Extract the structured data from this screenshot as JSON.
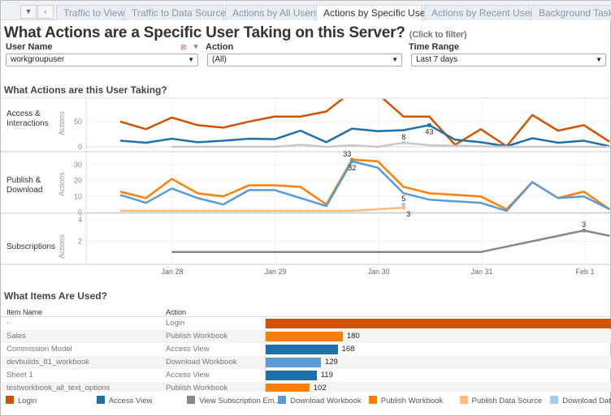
{
  "tabs": {
    "items": [
      "Traffic to Views",
      "Traffic to Data Sources",
      "Actions by All Users",
      "Actions by Specific User",
      "Actions by Recent Users",
      "Background Tasks"
    ],
    "active": 3
  },
  "title": "What Actions are a Specific User Taking on this Server?",
  "title_hint": "(Click to filter)",
  "filters": {
    "user": {
      "label": "User Name",
      "value": "workgroupuser"
    },
    "action": {
      "label": "Action",
      "value": "(All)"
    },
    "time": {
      "label": "Time Range",
      "value": "Last 7 days"
    }
  },
  "actions_section": "What Actions are this User Taking?",
  "items_section": "What Items Are Used?",
  "chart_data": [
    {
      "type": "line",
      "panels": [
        {
          "label": "Access & Interactions",
          "ylabel": "Actions",
          "ylim": [
            0,
            95
          ],
          "yticks": [
            0,
            50
          ]
        },
        {
          "label": "Publish & Download",
          "ylabel": "Actions",
          "ylim": [
            0,
            36
          ],
          "yticks": [
            0,
            10,
            20,
            30
          ]
        },
        {
          "label": "Subscriptions",
          "ylabel": "Actions",
          "ylim": [
            0,
            4.3
          ],
          "yticks": [
            2,
            4
          ]
        }
      ],
      "xticks": [
        "Jan 28",
        "Jan 29",
        "Jan 30",
        "Jan 31",
        "Feb 1"
      ],
      "x": [
        "Jan 27 12:00",
        "Jan 27 18:00",
        "Jan 28 00:00",
        "Jan 28 06:00",
        "Jan 28 12:00",
        "Jan 28 18:00",
        "Jan 29 00:00",
        "Jan 29 06:00",
        "Jan 29 12:00",
        "Jan 29 18:00",
        "Jan 30 00:00",
        "Jan 30 06:00",
        "Jan 30 12:00",
        "Jan 30 18:00",
        "Jan 31 00:00",
        "Jan 31 06:00",
        "Jan 31 12:00",
        "Jan 31 18:00",
        "Feb 1 00:00",
        "Feb 1 06:00"
      ],
      "series": [
        {
          "name": "Login",
          "panel": 0,
          "color": "#cf5300",
          "values": [
            50,
            35,
            58,
            43,
            38,
            50,
            60,
            60,
            70,
            110,
            105,
            60,
            60,
            4,
            35,
            1,
            63,
            32,
            43,
            10
          ]
        },
        {
          "name": "Access View",
          "panel": 0,
          "color": "#1f6fa8",
          "values": [
            12,
            8,
            16,
            9,
            12,
            16,
            15,
            32,
            9,
            36,
            31,
            33,
            43,
            14,
            9,
            1,
            17,
            8,
            12,
            1
          ],
          "labels": {
            "12": "43"
          }
        },
        {
          "panel": 0,
          "color": "#c8c8c8",
          "values": [
            null,
            null,
            0,
            0,
            0,
            0,
            0,
            4,
            0,
            3,
            0,
            8,
            3,
            2,
            1,
            0,
            0,
            0,
            0,
            0
          ],
          "labels": {
            "11": "8"
          }
        },
        {
          "name": "Publish Workbook",
          "panel": 1,
          "color": "#ff8000",
          "values": [
            13,
            9,
            21,
            12,
            10,
            17,
            17,
            16,
            5,
            33,
            32,
            16,
            12,
            11,
            10,
            2,
            19,
            9,
            13,
            2
          ],
          "labels": {
            "9": "33"
          }
        },
        {
          "name": "Download Workbook",
          "panel": 1,
          "color": "#5b9bd5",
          "values": [
            11,
            6,
            15,
            9,
            5,
            14,
            14,
            9,
            4,
            32,
            28,
            12,
            8,
            7,
            6,
            1,
            19,
            9,
            10,
            2
          ],
          "labels": {
            "9": "32"
          }
        },
        {
          "name": "Publish Data Source",
          "panel": 1,
          "color": "#ffbc79",
          "values": [
            1,
            1,
            1,
            1,
            1,
            1,
            1,
            1,
            1,
            1,
            2,
            3,
            null,
            null,
            null,
            null,
            null,
            null,
            null,
            null
          ],
          "labels": {
            "11": "3"
          }
        },
        {
          "name": "Download Data Source",
          "panel": 1,
          "color": "#a6cdee",
          "values": [
            null,
            null,
            null,
            null,
            null,
            null,
            null,
            null,
            null,
            null,
            null,
            5,
            null,
            null,
            null,
            null,
            null,
            null,
            null,
            null
          ],
          "labels": {
            "11": "5"
          }
        },
        {
          "name": "View Subscription Email",
          "panel": 2,
          "color": "#888888",
          "values": [
            null,
            null,
            1,
            1,
            1,
            1,
            1,
            1,
            1,
            1,
            1,
            1,
            1,
            1,
            1,
            null,
            null,
            null,
            3,
            2.5
          ],
          "labels": {
            "18": "3"
          }
        }
      ]
    },
    {
      "type": "bar",
      "columns": [
        "Item Name",
        "Action"
      ],
      "rows": [
        {
          "item": "-",
          "action": "Login",
          "value": null,
          "color": "#cf5300"
        },
        {
          "item": "Sales",
          "action": "Publish Workbook",
          "value": 180,
          "color": "#ff8000"
        },
        {
          "item": "Commission Model",
          "action": "Access View",
          "value": 168,
          "color": "#1f6fa8"
        },
        {
          "item": "devbuilds_81_workbook",
          "action": "Download Workbook",
          "value": 129,
          "color": "#5b9bd5"
        },
        {
          "item": "Sheet 1",
          "action": "Access View",
          "value": 119,
          "color": "#1f6fa8"
        },
        {
          "item": "testworkbook_all_text_options",
          "action": "Publish Workbook",
          "value": 102,
          "color": "#ff8000"
        }
      ]
    }
  ],
  "legend": [
    {
      "label": "Login",
      "color": "#cf5300"
    },
    {
      "label": "Access View",
      "color": "#1f6fa8"
    },
    {
      "label": "View Subscription Em...",
      "color": "#888888"
    },
    {
      "label": "Download Workbook",
      "color": "#5b9bd5"
    },
    {
      "label": "Publish Workbook",
      "color": "#ff8000"
    },
    {
      "label": "Publish Data Source",
      "color": "#ffbc79"
    },
    {
      "label": "Download Data",
      "color": "#a6cdee"
    }
  ]
}
